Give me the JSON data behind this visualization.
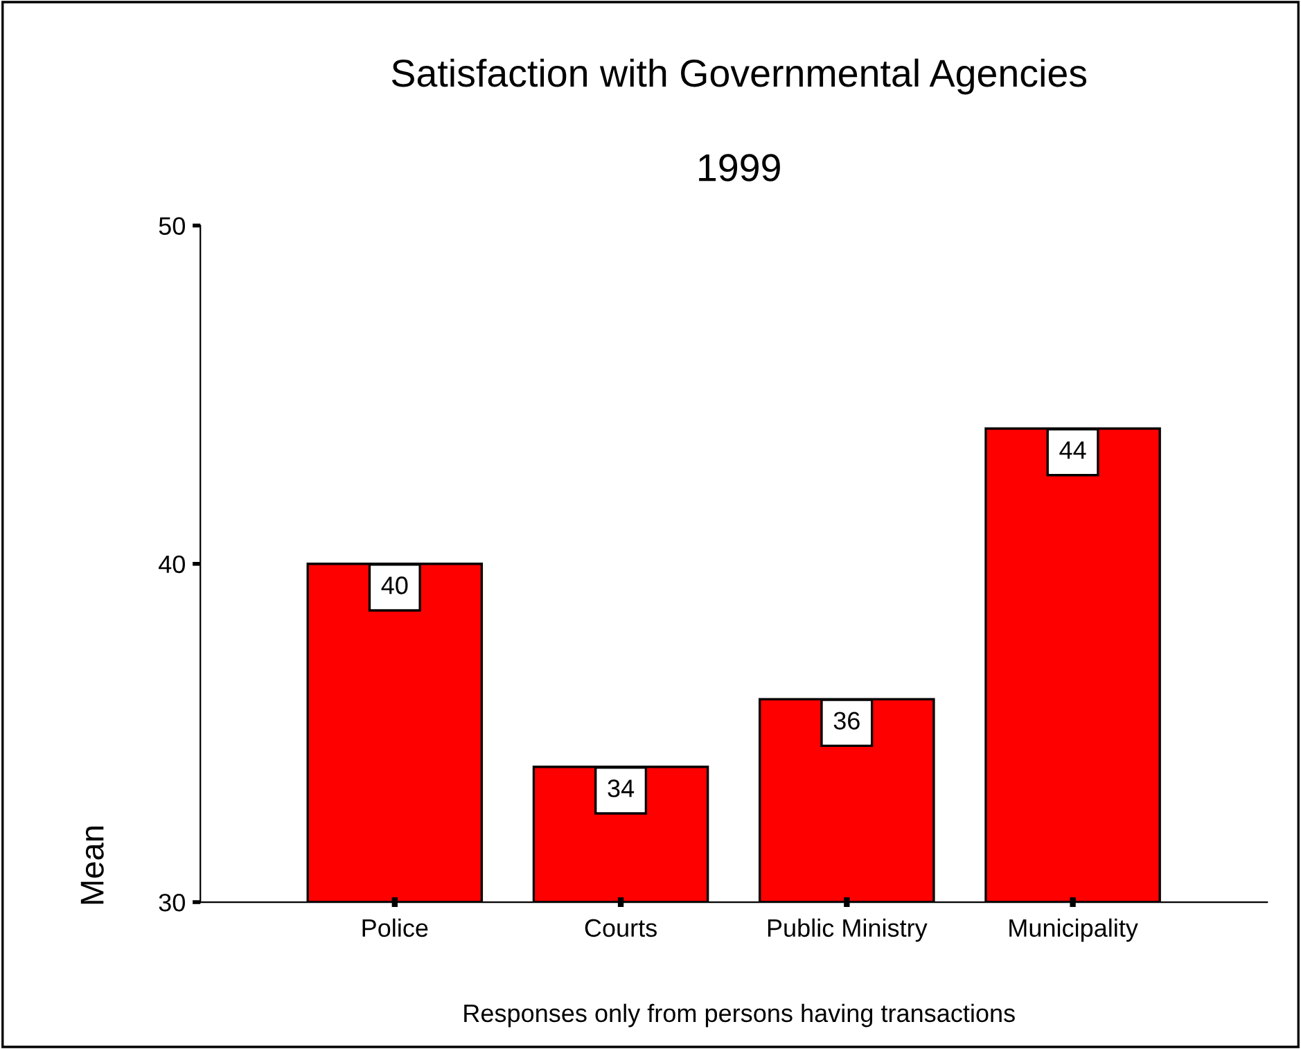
{
  "chart_data": {
    "type": "bar",
    "title": "Satisfaction with Governmental Agencies",
    "subtitle": "1999",
    "ylabel": "Mean",
    "xlabel": "Responses only from persons having transactions",
    "categories": [
      "Police",
      "Courts",
      "Public Ministry",
      "Municipality"
    ],
    "values": [
      40,
      34,
      36,
      44
    ],
    "color": "#ff0000",
    "data_labels": true,
    "ylim": [
      30,
      50
    ],
    "yticks": [
      30,
      40,
      50
    ],
    "grid": false,
    "legend": false
  }
}
